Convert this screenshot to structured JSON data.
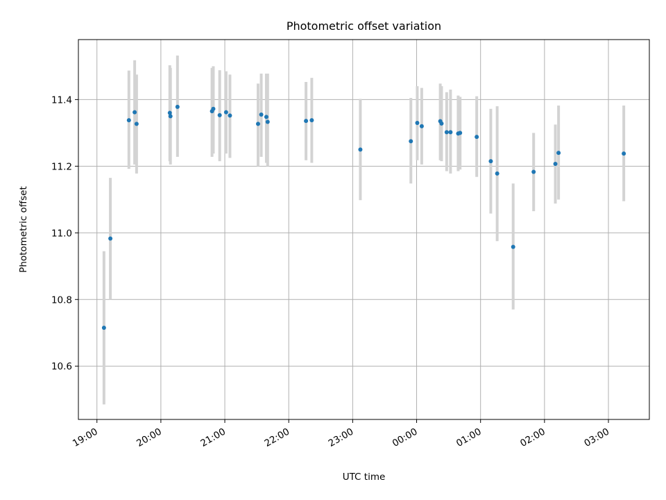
{
  "chart_data": {
    "type": "scatter",
    "title": "Photometric offset variation",
    "xlabel": "UTC time",
    "ylabel": "Photometric offset",
    "x_ticks": [
      "19:00",
      "20:00",
      "21:00",
      "22:00",
      "23:00",
      "00:00",
      "01:00",
      "02:00",
      "03:00"
    ],
    "y_ticks": [
      "10.6",
      "10.8",
      "11.0",
      "11.2",
      "11.4"
    ],
    "x_tick_hours": [
      19,
      20,
      21,
      22,
      23,
      24,
      25,
      26,
      27
    ],
    "y_tick_values": [
      10.6,
      10.8,
      11.0,
      11.2,
      11.4
    ],
    "xlim_hours": [
      18.71,
      27.64
    ],
    "ylim": [
      10.44,
      11.58
    ],
    "grid": true,
    "colors": {
      "marker": "#1f77b4",
      "errorbar": "#d3d3d3",
      "grid": "#b0b0b0",
      "axis": "#000000"
    },
    "series": [
      {
        "points": [
          {
            "x": 19.11,
            "y": 10.715,
            "lo": 10.485,
            "hi": 10.945
          },
          {
            "x": 19.21,
            "y": 10.983,
            "lo": 10.8,
            "hi": 11.165
          },
          {
            "x": 19.5,
            "y": 11.338,
            "lo": 11.192,
            "hi": 11.487
          },
          {
            "x": 19.59,
            "y": 11.362,
            "lo": 11.205,
            "hi": 11.518
          },
          {
            "x": 19.62,
            "y": 11.327,
            "lo": 11.178,
            "hi": 11.475
          },
          {
            "x": 20.14,
            "y": 11.36,
            "lo": 11.215,
            "hi": 11.503
          },
          {
            "x": 20.15,
            "y": 11.35,
            "lo": 11.205,
            "hi": 11.495
          },
          {
            "x": 20.26,
            "y": 11.378,
            "lo": 11.228,
            "hi": 11.532
          },
          {
            "x": 20.8,
            "y": 11.365,
            "lo": 11.228,
            "hi": 11.495
          },
          {
            "x": 20.82,
            "y": 11.372,
            "lo": 11.238,
            "hi": 11.5
          },
          {
            "x": 20.92,
            "y": 11.353,
            "lo": 11.215,
            "hi": 11.488
          },
          {
            "x": 21.02,
            "y": 11.362,
            "lo": 11.238,
            "hi": 11.485
          },
          {
            "x": 21.08,
            "y": 11.352,
            "lo": 11.225,
            "hi": 11.475
          },
          {
            "x": 21.52,
            "y": 11.327,
            "lo": 11.2,
            "hi": 11.448
          },
          {
            "x": 21.57,
            "y": 11.355,
            "lo": 11.228,
            "hi": 11.478
          },
          {
            "x": 21.65,
            "y": 11.348,
            "lo": 11.21,
            "hi": 11.478
          },
          {
            "x": 21.67,
            "y": 11.333,
            "lo": 11.2,
            "hi": 11.478
          },
          {
            "x": 22.27,
            "y": 11.336,
            "lo": 11.218,
            "hi": 11.453
          },
          {
            "x": 22.36,
            "y": 11.338,
            "lo": 11.21,
            "hi": 11.465
          },
          {
            "x": 23.12,
            "y": 11.25,
            "lo": 11.098,
            "hi": 11.402
          },
          {
            "x": 23.91,
            "y": 11.275,
            "lo": 11.148,
            "hi": 11.405
          },
          {
            "x": 24.01,
            "y": 11.33,
            "lo": 11.218,
            "hi": 11.44
          },
          {
            "x": 24.08,
            "y": 11.32,
            "lo": 11.205,
            "hi": 11.435
          },
          {
            "x": 24.37,
            "y": 11.335,
            "lo": 11.218,
            "hi": 11.448
          },
          {
            "x": 24.39,
            "y": 11.328,
            "lo": 11.215,
            "hi": 11.44
          },
          {
            "x": 24.47,
            "y": 11.302,
            "lo": 11.185,
            "hi": 11.422
          },
          {
            "x": 24.53,
            "y": 11.302,
            "lo": 11.178,
            "hi": 11.43
          },
          {
            "x": 24.65,
            "y": 11.298,
            "lo": 11.185,
            "hi": 11.412
          },
          {
            "x": 24.68,
            "y": 11.3,
            "lo": 11.19,
            "hi": 11.408
          },
          {
            "x": 24.94,
            "y": 11.288,
            "lo": 11.168,
            "hi": 11.41
          },
          {
            "x": 25.16,
            "y": 11.215,
            "lo": 11.058,
            "hi": 11.372
          },
          {
            "x": 25.26,
            "y": 11.178,
            "lo": 10.975,
            "hi": 11.38
          },
          {
            "x": 25.51,
            "y": 10.958,
            "lo": 10.77,
            "hi": 11.148
          },
          {
            "x": 25.83,
            "y": 11.183,
            "lo": 11.065,
            "hi": 11.3
          },
          {
            "x": 26.17,
            "y": 11.207,
            "lo": 11.088,
            "hi": 11.325
          },
          {
            "x": 26.22,
            "y": 11.24,
            "lo": 11.1,
            "hi": 11.382
          },
          {
            "x": 27.24,
            "y": 11.238,
            "lo": 11.095,
            "hi": 11.382
          }
        ]
      }
    ]
  }
}
